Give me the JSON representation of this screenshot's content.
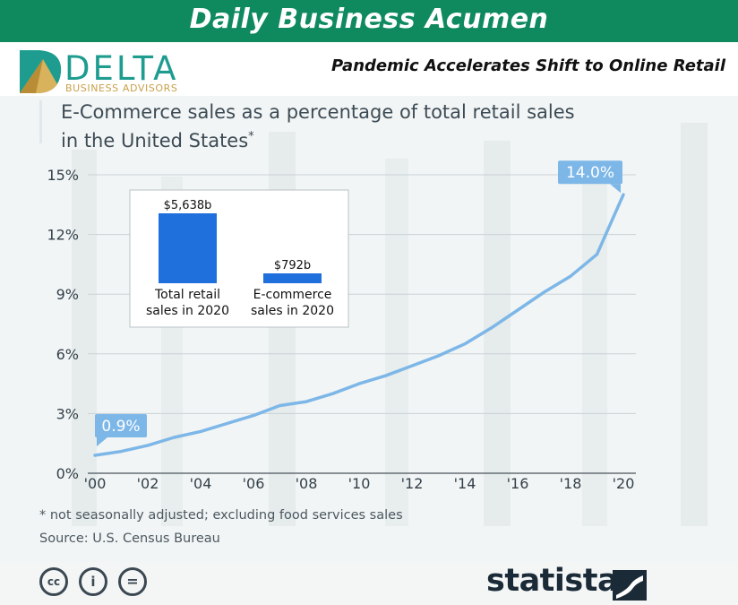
{
  "banner": {
    "title": "Daily Business Acumen",
    "color": "#0f8a5f"
  },
  "brand": {
    "logo_word": "DELTA",
    "logo_sub": "BUSINESS ADVISORS"
  },
  "headline": "Pandemic Accelerates Shift to Online Retail",
  "chart_data": {
    "type": "line",
    "title": "E-Commerce sales as a percentage of total retail sales in the United States",
    "title_line1": "E-Commerce sales as a percentage of total retail sales",
    "title_line2": "in the United States",
    "title_mark": "*",
    "x": [
      2000,
      2001,
      2002,
      2003,
      2004,
      2005,
      2006,
      2007,
      2008,
      2009,
      2010,
      2011,
      2012,
      2013,
      2014,
      2015,
      2016,
      2017,
      2018,
      2019,
      2020
    ],
    "x_tick_labels": [
      "'00",
      "'02",
      "'04",
      "'06",
      "'08",
      "'10",
      "'12",
      "'14",
      "'16",
      "'18",
      "'20"
    ],
    "x_tick_values": [
      2000,
      2002,
      2004,
      2006,
      2008,
      2010,
      2012,
      2014,
      2016,
      2018,
      2020
    ],
    "series": [
      {
        "values": [
          0.9,
          1.1,
          1.4,
          1.8,
          2.1,
          2.5,
          2.9,
          3.4,
          3.6,
          4.0,
          4.5,
          4.9,
          5.4,
          5.9,
          6.5,
          7.3,
          8.2,
          9.1,
          9.9,
          11.0,
          14.0
        ]
      }
    ],
    "y_tick_labels": [
      "0%",
      "3%",
      "6%",
      "9%",
      "12%",
      "15%"
    ],
    "y_tick_values": [
      0,
      3,
      6,
      9,
      12,
      15
    ],
    "ylim": [
      0,
      15
    ],
    "xlim": [
      2000,
      2020
    ],
    "grid": true,
    "line_color": "#7db7e8",
    "callouts": [
      {
        "x": 2000,
        "y": 0.9,
        "label": "0.9%"
      },
      {
        "x": 2020,
        "y": 14.0,
        "label": "14.0%"
      }
    ],
    "inset": {
      "type": "bar",
      "categories": [
        "Total retail sales in 2020",
        "E-commerce sales in 2020"
      ],
      "category_lines": [
        [
          "Total retail",
          "sales in 2020"
        ],
        [
          "E-commerce",
          "sales in 2020"
        ]
      ],
      "values": [
        5638,
        792
      ],
      "value_labels": [
        "$5,638b",
        "$792b"
      ],
      "bar_color": "#1f6fdc"
    }
  },
  "footnote": "* not seasonally adjusted; excluding food services sales",
  "source": "Source: U.S. Census Bureau",
  "footer": {
    "cc_labels": [
      "cc",
      "i",
      "="
    ],
    "statista": "statista"
  }
}
